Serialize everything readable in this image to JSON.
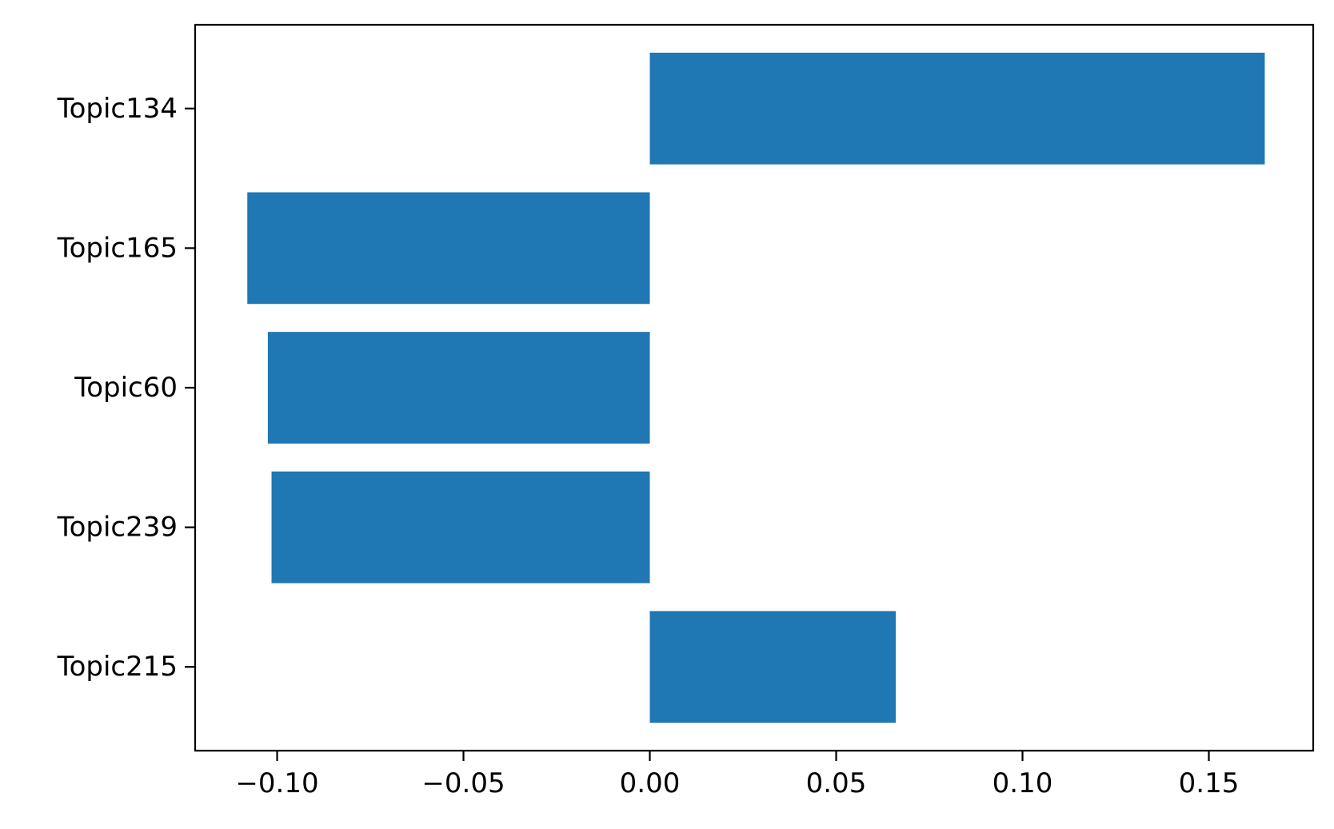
{
  "chart_data": {
    "type": "bar",
    "orientation": "horizontal",
    "categories": [
      "Topic134",
      "Topic165",
      "Topic60",
      "Topic239",
      "Topic215"
    ],
    "values": [
      0.165,
      -0.108,
      -0.1025,
      -0.1015,
      0.066
    ],
    "title": "",
    "xlabel": "",
    "ylabel": "",
    "xlim": [
      -0.122,
      0.178
    ],
    "xticks": [
      -0.1,
      -0.05,
      0.0,
      0.05,
      0.1,
      0.15
    ],
    "xtick_labels": [
      "−0.10",
      "−0.05",
      "0.00",
      "0.05",
      "0.10",
      "0.15"
    ],
    "grid": false,
    "legend": "none",
    "bar_color": "#1f77b4"
  }
}
